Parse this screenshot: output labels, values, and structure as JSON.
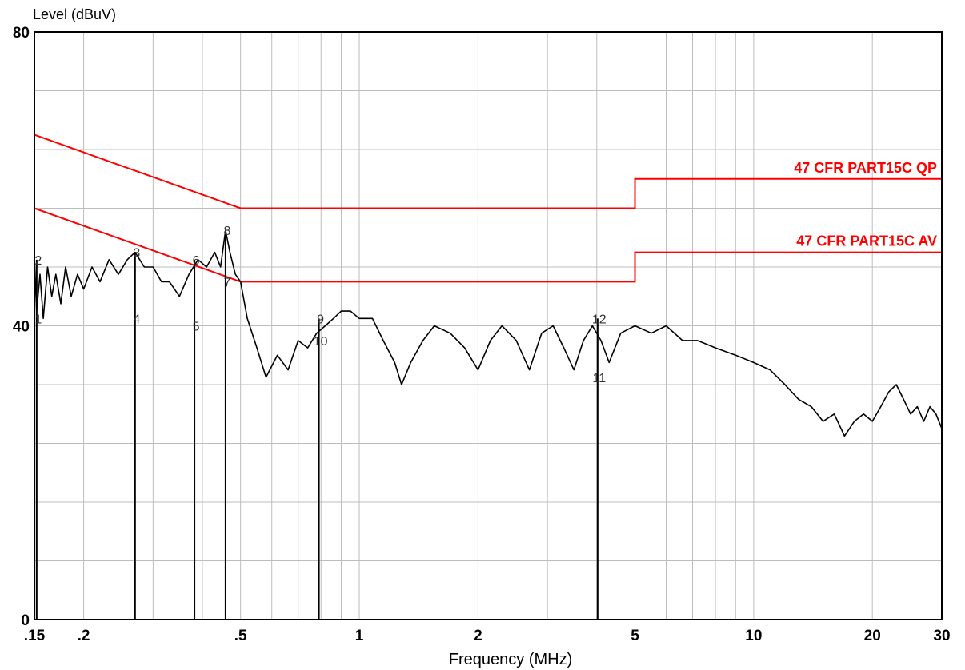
{
  "chart_data": {
    "type": "line",
    "ylabel": "Level (dBuV)",
    "xlabel": "Frequency (MHz)",
    "xscale": "log",
    "xlim": [
      0.15,
      30
    ],
    "ylim": [
      0,
      80
    ],
    "yticks": [
      "0",
      "40",
      "80"
    ],
    "xticks": [
      {
        "value": 0.15,
        "label": ".15"
      },
      {
        "value": 0.2,
        "label": ".2"
      },
      {
        "value": 0.5,
        "label": ".5"
      },
      {
        "value": 1,
        "label": "1"
      },
      {
        "value": 2,
        "label": "2"
      },
      {
        "value": 5,
        "label": "5"
      },
      {
        "value": 10,
        "label": "10"
      },
      {
        "value": 20,
        "label": "20"
      },
      {
        "value": 30,
        "label": "30"
      }
    ],
    "grid": true,
    "limit_lines": [
      {
        "name": "47 CFR PART15C QP",
        "color": "#ff0000",
        "points": [
          [
            0.15,
            66
          ],
          [
            0.5,
            56
          ],
          [
            5,
            56
          ],
          [
            5,
            60
          ],
          [
            30,
            60
          ]
        ]
      },
      {
        "name": "47 CFR PART15C AV",
        "color": "#ff0000",
        "points": [
          [
            0.15,
            56
          ],
          [
            0.5,
            46
          ],
          [
            5,
            46
          ],
          [
            5,
            50
          ],
          [
            30,
            50
          ]
        ]
      }
    ],
    "trace": {
      "color": "#000000",
      "points": [
        [
          0.15,
          49
        ],
        [
          0.152,
          42
        ],
        [
          0.155,
          47
        ],
        [
          0.158,
          41
        ],
        [
          0.162,
          48
        ],
        [
          0.166,
          44
        ],
        [
          0.17,
          47
        ],
        [
          0.175,
          43
        ],
        [
          0.18,
          48
        ],
        [
          0.186,
          44
        ],
        [
          0.193,
          47
        ],
        [
          0.2,
          45
        ],
        [
          0.21,
          48
        ],
        [
          0.22,
          46
        ],
        [
          0.232,
          49
        ],
        [
          0.245,
          47
        ],
        [
          0.258,
          49
        ],
        [
          0.27,
          50
        ],
        [
          0.285,
          48
        ],
        [
          0.3,
          48
        ],
        [
          0.315,
          46
        ],
        [
          0.33,
          46
        ],
        [
          0.35,
          44
        ],
        [
          0.37,
          47
        ],
        [
          0.39,
          49
        ],
        [
          0.41,
          48
        ],
        [
          0.43,
          50
        ],
        [
          0.445,
          48
        ],
        [
          0.458,
          53
        ],
        [
          0.47,
          50
        ],
        [
          0.485,
          47
        ],
        [
          0.5,
          46
        ],
        [
          0.52,
          41
        ],
        [
          0.55,
          37
        ],
        [
          0.58,
          33
        ],
        [
          0.62,
          36
        ],
        [
          0.66,
          34
        ],
        [
          0.7,
          38
        ],
        [
          0.74,
          37
        ],
        [
          0.78,
          39
        ],
        [
          0.82,
          40
        ],
        [
          0.86,
          41
        ],
        [
          0.9,
          42
        ],
        [
          0.95,
          42
        ],
        [
          1.0,
          41
        ],
        [
          1.08,
          41
        ],
        [
          1.15,
          38
        ],
        [
          1.23,
          35
        ],
        [
          1.28,
          32
        ],
        [
          1.35,
          35
        ],
        [
          1.45,
          38
        ],
        [
          1.55,
          40
        ],
        [
          1.7,
          39
        ],
        [
          1.85,
          37
        ],
        [
          2.0,
          34
        ],
        [
          2.15,
          38
        ],
        [
          2.3,
          40
        ],
        [
          2.5,
          38
        ],
        [
          2.7,
          34
        ],
        [
          2.9,
          39
        ],
        [
          3.1,
          40
        ],
        [
          3.3,
          37
        ],
        [
          3.5,
          34
        ],
        [
          3.7,
          38
        ],
        [
          3.9,
          40
        ],
        [
          4.1,
          38
        ],
        [
          4.3,
          35
        ],
        [
          4.6,
          39
        ],
        [
          5.0,
          40
        ],
        [
          5.5,
          39
        ],
        [
          6.0,
          40
        ],
        [
          6.6,
          38
        ],
        [
          7.2,
          38
        ],
        [
          8.0,
          37
        ],
        [
          9.0,
          36
        ],
        [
          10.0,
          35
        ],
        [
          11.0,
          34
        ],
        [
          12.0,
          32
        ],
        [
          13.0,
          30
        ],
        [
          14.0,
          29
        ],
        [
          15.0,
          27
        ],
        [
          16.0,
          28
        ],
        [
          17.0,
          25
        ],
        [
          18.0,
          27
        ],
        [
          19.0,
          28
        ],
        [
          20.0,
          27
        ],
        [
          21.0,
          29
        ],
        [
          22.0,
          31
        ],
        [
          23.0,
          32
        ],
        [
          24.0,
          30
        ],
        [
          25.0,
          28
        ],
        [
          26.0,
          29
        ],
        [
          27.0,
          27
        ],
        [
          28.0,
          29
        ],
        [
          29.0,
          28
        ],
        [
          30.0,
          26
        ]
      ]
    },
    "markers": [
      {
        "label": "1",
        "freq": 0.152,
        "level": 41
      },
      {
        "label": "2",
        "freq": 0.152,
        "level": 49
      },
      {
        "label": "3",
        "freq": 0.27,
        "level": 50
      },
      {
        "label": "4",
        "freq": 0.27,
        "level": 41
      },
      {
        "label": "5",
        "freq": 0.382,
        "level": 40
      },
      {
        "label": "6",
        "freq": 0.382,
        "level": 49
      },
      {
        "label": "7",
        "freq": 0.458,
        "level": 46
      },
      {
        "label": "8",
        "freq": 0.458,
        "level": 53
      },
      {
        "label": "9",
        "freq": 0.79,
        "level": 41
      },
      {
        "label": "10",
        "freq": 0.79,
        "level": 38
      },
      {
        "label": "11",
        "freq": 4.02,
        "level": 33
      },
      {
        "label": "12",
        "freq": 4.02,
        "level": 41
      }
    ]
  }
}
